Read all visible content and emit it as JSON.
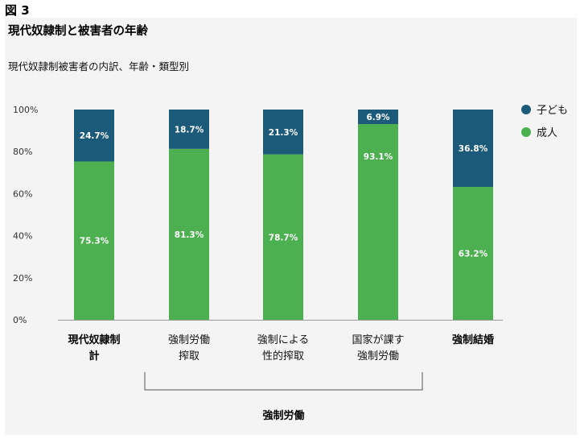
{
  "figure_label": "図 3",
  "colors": {
    "child": "#1c5a7a",
    "adult": "#4caf50",
    "axis": "#333333"
  },
  "chart_data": {
    "type": "bar",
    "stacked": true,
    "title": "現代奴隷制と被害者の年齢",
    "subtitle": "現代奴隷制被害者の内訳、年齢・類型別",
    "categories": [
      [
        "現代奴隷制",
        "計"
      ],
      [
        "強制労働",
        "搾取"
      ],
      [
        "強制による",
        "性的搾取"
      ],
      [
        "国家が課す",
        "強制労働"
      ],
      [
        "強制結婚"
      ]
    ],
    "category_bold": [
      true,
      false,
      false,
      false,
      true
    ],
    "series": [
      {
        "name": "成人",
        "values": [
          75.3,
          81.3,
          78.7,
          93.1,
          63.2
        ],
        "labels": [
          "75.3%",
          "81.3%",
          "78.7%",
          "93.1%",
          "63.2%"
        ]
      },
      {
        "name": "子ども",
        "values": [
          24.7,
          18.7,
          21.3,
          6.9,
          36.8
        ],
        "labels": [
          "24.7%",
          "18.7%",
          "21.3%",
          "6.9%",
          "36.8%"
        ]
      }
    ],
    "ylim": [
      0,
      100
    ],
    "yticks": [
      0,
      20,
      40,
      60,
      80,
      100
    ],
    "ytick_labels": [
      "0%",
      "20%",
      "40%",
      "60%",
      "80%",
      "100%"
    ],
    "legend": [
      {
        "name": "子ども"
      },
      {
        "name": "成人"
      }
    ],
    "legend_position": "top-right",
    "group_bracket": {
      "label": "強制労働",
      "from_category": 1,
      "to_category": 3
    },
    "grid": false
  }
}
